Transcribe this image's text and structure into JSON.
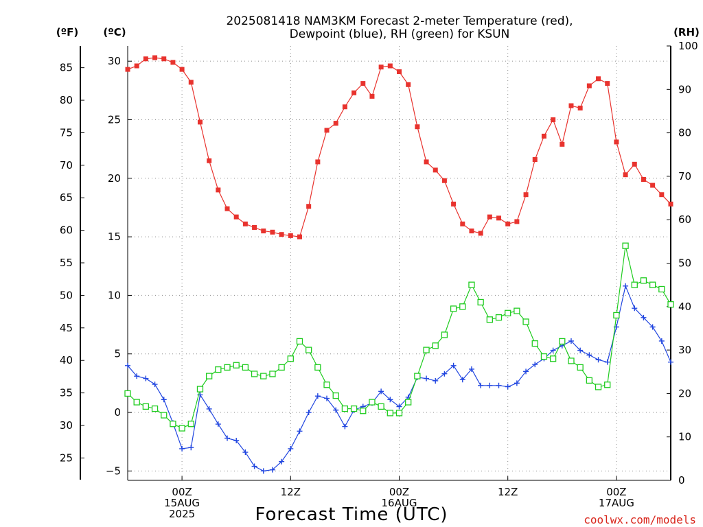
{
  "chart_data": {
    "type": "line",
    "title": "2025081418 NAM3KM Forecast 2-meter Temperature (red),",
    "subtitle": "Dewpoint (blue), RH (green) for KSUN",
    "xlabel": "Forecast Time (UTC)",
    "credit": "coolwx.com/models",
    "left_outer_unit": "(ºF)",
    "left_inner_unit": "(ºC)",
    "right_unit": "(RH)",
    "x_hours_range": [
      -6,
      54
    ],
    "x_ticks": [
      {
        "hour": 0,
        "lines": [
          "00Z",
          "15AUG",
          "2025"
        ]
      },
      {
        "hour": 12,
        "lines": [
          "12Z"
        ]
      },
      {
        "hour": 24,
        "lines": [
          "00Z",
          "16AUG"
        ]
      },
      {
        "hour": 36,
        "lines": [
          "12Z"
        ]
      },
      {
        "hour": 48,
        "lines": [
          "00Z",
          "17AUG"
        ]
      }
    ],
    "yc_range": [
      -5.8,
      31.3
    ],
    "yc_ticks": [
      -5,
      0,
      5,
      10,
      15,
      20,
      25,
      30
    ],
    "yf_ticks": [
      25,
      30,
      35,
      40,
      45,
      50,
      55,
      60,
      65,
      70,
      75,
      80,
      85
    ],
    "rh_range": [
      0,
      100
    ],
    "rh_ticks": [
      0,
      10,
      20,
      30,
      40,
      50,
      60,
      70,
      80,
      90,
      100
    ],
    "grid": true,
    "series": [
      {
        "name": "Temperature",
        "axis": "celsius",
        "color": "#e8332e",
        "marker": "filled-square",
        "hours": [
          -6,
          -5,
          -4,
          -3,
          -2,
          -1,
          0,
          1,
          2,
          3,
          4,
          5,
          6,
          7,
          8,
          9,
          10,
          11,
          12,
          13,
          14,
          15,
          16,
          17,
          18,
          19,
          20,
          21,
          22,
          23,
          24,
          25,
          26,
          27,
          28,
          29,
          30,
          31,
          32,
          33,
          34,
          35,
          36,
          37,
          38,
          39,
          40,
          41,
          42,
          43,
          44,
          45,
          46,
          47,
          48,
          49,
          50,
          51,
          52,
          53,
          54
        ],
        "values": [
          29.3,
          29.6,
          30.2,
          30.3,
          30.2,
          29.9,
          29.3,
          28.2,
          24.8,
          21.5,
          19.0,
          17.4,
          16.7,
          16.1,
          15.8,
          15.5,
          15.4,
          15.2,
          15.1,
          15.0,
          17.6,
          21.4,
          24.1,
          24.7,
          26.1,
          27.3,
          28.1,
          27.0,
          29.5,
          29.6,
          29.1,
          28.0,
          24.4,
          21.4,
          20.7,
          19.8,
          17.8,
          16.1,
          15.5,
          15.3,
          16.7,
          16.6,
          16.1,
          16.3,
          18.6,
          21.6,
          23.6,
          25.0,
          22.9,
          26.2,
          26.0,
          27.9,
          28.5,
          28.1,
          23.1,
          20.3,
          21.2,
          19.9,
          19.4,
          18.6,
          17.8
        ]
      },
      {
        "name": "Dewpoint",
        "axis": "celsius",
        "color": "#2146e0",
        "marker": "plus",
        "hours": [
          -6,
          -5,
          -4,
          -3,
          -2,
          -1,
          0,
          1,
          2,
          3,
          4,
          5,
          6,
          7,
          8,
          9,
          10,
          11,
          12,
          13,
          14,
          15,
          16,
          17,
          18,
          19,
          20,
          21,
          22,
          23,
          24,
          25,
          26,
          27,
          28,
          29,
          30,
          31,
          32,
          33,
          34,
          35,
          36,
          37,
          38,
          39,
          40,
          41,
          42,
          43,
          44,
          45,
          46,
          47,
          48,
          49,
          50,
          51,
          52,
          53,
          54
        ],
        "values": [
          4.0,
          3.1,
          2.9,
          2.4,
          1.1,
          -0.9,
          -3.1,
          -3.0,
          1.5,
          0.3,
          -1.0,
          -2.2,
          -2.4,
          -3.4,
          -4.6,
          -5.0,
          -4.9,
          -4.2,
          -3.1,
          -1.6,
          0.0,
          1.4,
          1.2,
          0.2,
          -1.2,
          0.2,
          0.5,
          0.8,
          1.8,
          1.1,
          0.5,
          1.3,
          3.0,
          2.9,
          2.7,
          3.3,
          4.0,
          2.8,
          3.7,
          2.3,
          2.3,
          2.3,
          2.2,
          2.5,
          3.5,
          4.1,
          4.6,
          5.3,
          5.7,
          6.1,
          5.3,
          4.9,
          4.5,
          4.3,
          7.3,
          10.8,
          8.9,
          8.1,
          7.3,
          6.1,
          4.3
        ]
      },
      {
        "name": "RH",
        "axis": "rh",
        "color": "#1fcc1f",
        "marker": "open-square",
        "hours": [
          -6,
          -5,
          -4,
          -3,
          -2,
          -1,
          0,
          1,
          2,
          3,
          4,
          5,
          6,
          7,
          8,
          9,
          10,
          11,
          12,
          13,
          14,
          15,
          16,
          17,
          18,
          19,
          20,
          21,
          22,
          23,
          24,
          25,
          26,
          27,
          28,
          29,
          30,
          31,
          32,
          33,
          34,
          35,
          36,
          37,
          38,
          39,
          40,
          41,
          42,
          43,
          44,
          45,
          46,
          47,
          48,
          49,
          50,
          51,
          52,
          53,
          54
        ],
        "values": [
          20,
          18,
          17,
          16.5,
          15,
          13,
          12,
          13,
          21,
          24,
          25.5,
          26,
          26.5,
          26,
          24.5,
          24,
          24.5,
          26,
          28,
          32,
          30,
          26,
          22,
          19.5,
          16.5,
          16.5,
          16,
          18,
          17,
          15.5,
          15.5,
          18,
          24,
          30,
          31,
          33.5,
          39.5,
          40,
          45,
          41,
          37,
          37.5,
          38.5,
          39,
          36.5,
          31.5,
          28.5,
          28,
          32,
          27.5,
          26,
          23,
          21.5,
          22,
          38,
          54,
          45,
          46,
          45,
          44,
          40.5
        ]
      }
    ]
  }
}
